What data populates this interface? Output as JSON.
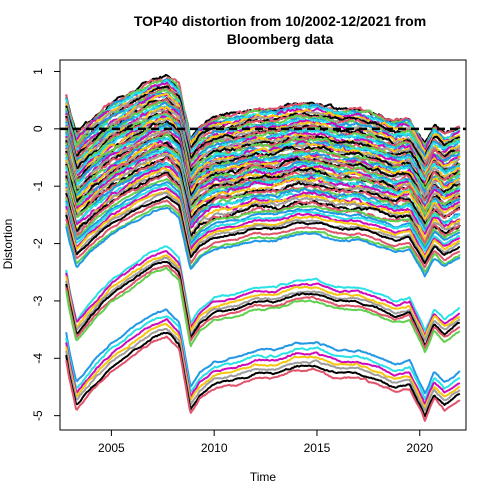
{
  "chart_data": {
    "type": "line",
    "title_lines": [
      "TOP40 distortion from 10/2002-12/2021 from",
      "Bloomberg data"
    ],
    "xlabel": "Time",
    "ylabel": "Distortion",
    "xlim": [
      2002.5,
      2022.25
    ],
    "ylim": [
      -5.25,
      1.2
    ],
    "x_ticks": [
      2005,
      2010,
      2015,
      2020
    ],
    "x_tick_labels": [
      "2005",
      "2010",
      "2015",
      "2020"
    ],
    "y_ticks": [
      1,
      0,
      -1,
      -2,
      -3,
      -4,
      -5
    ],
    "y_tick_labels": [
      "1",
      "0",
      "-1",
      "-2",
      "-3",
      "-4",
      "-5"
    ],
    "reference_line": {
      "y": 0,
      "style": "dashed",
      "color": "#000000"
    },
    "grid": false,
    "legend": "none",
    "line_count": 90,
    "x_start": 2002.8,
    "x_end": 2021.95,
    "series_profile": {
      "x": [
        2002.8,
        2002.95,
        2003.3,
        2004.0,
        2005.0,
        2006.0,
        2007.0,
        2007.7,
        2008.3,
        2008.85,
        2009.3,
        2010.0,
        2011.0,
        2012.0,
        2013.0,
        2014.0,
        2015.0,
        2016.0,
        2017.0,
        2018.0,
        2018.8,
        2019.5,
        2020.1,
        2020.25,
        2020.7,
        2021.2,
        2021.95
      ],
      "y": [
        -0.2,
        -0.45,
        -0.9,
        -0.65,
        -0.35,
        -0.15,
        0.05,
        0.12,
        -0.05,
        -0.95,
        -0.75,
        -0.6,
        -0.55,
        -0.45,
        -0.45,
        -0.35,
        -0.35,
        -0.45,
        -0.45,
        -0.55,
        -0.65,
        -0.6,
        -0.95,
        -1.05,
        -0.75,
        -0.9,
        -0.75
      ]
    },
    "series_levels": [
      0.8,
      0.78,
      0.75,
      0.73,
      0.7,
      0.68,
      0.65,
      0.62,
      0.6,
      0.57,
      0.55,
      0.52,
      0.5,
      0.47,
      0.45,
      0.42,
      0.4,
      0.37,
      0.35,
      0.32,
      0.3,
      0.27,
      0.25,
      0.22,
      0.2,
      0.17,
      0.15,
      0.12,
      0.1,
      0.07,
      0.05,
      0.02,
      0.0,
      -0.03,
      -0.05,
      -0.08,
      -0.1,
      -0.13,
      -0.15,
      -0.18,
      -0.2,
      -0.23,
      -0.25,
      -0.28,
      -0.3,
      -0.33,
      -0.35,
      -0.38,
      -0.4,
      -0.43,
      -0.45,
      -0.48,
      -0.5,
      -0.53,
      -0.56,
      -0.6,
      -0.63,
      -0.66,
      -0.7,
      -0.73,
      -0.76,
      -0.8,
      -0.84,
      -0.88,
      -0.92,
      -0.96,
      -1.0,
      -1.05,
      -1.1,
      -1.15,
      -1.2,
      -1.25,
      -1.3,
      -1.38,
      -1.45,
      -1.5,
      -2.2,
      -2.27,
      -2.33,
      -2.4,
      -2.45,
      -2.52,
      -2.58,
      -3.3,
      -3.4,
      -3.48,
      -3.55,
      -3.62,
      -3.7,
      -3.78
    ],
    "palette": [
      "#000000",
      "#DF536B",
      "#61D04F",
      "#2297E6",
      "#28E2E5",
      "#CD0BBC",
      "#F5C710",
      "#9E9E9E"
    ]
  }
}
